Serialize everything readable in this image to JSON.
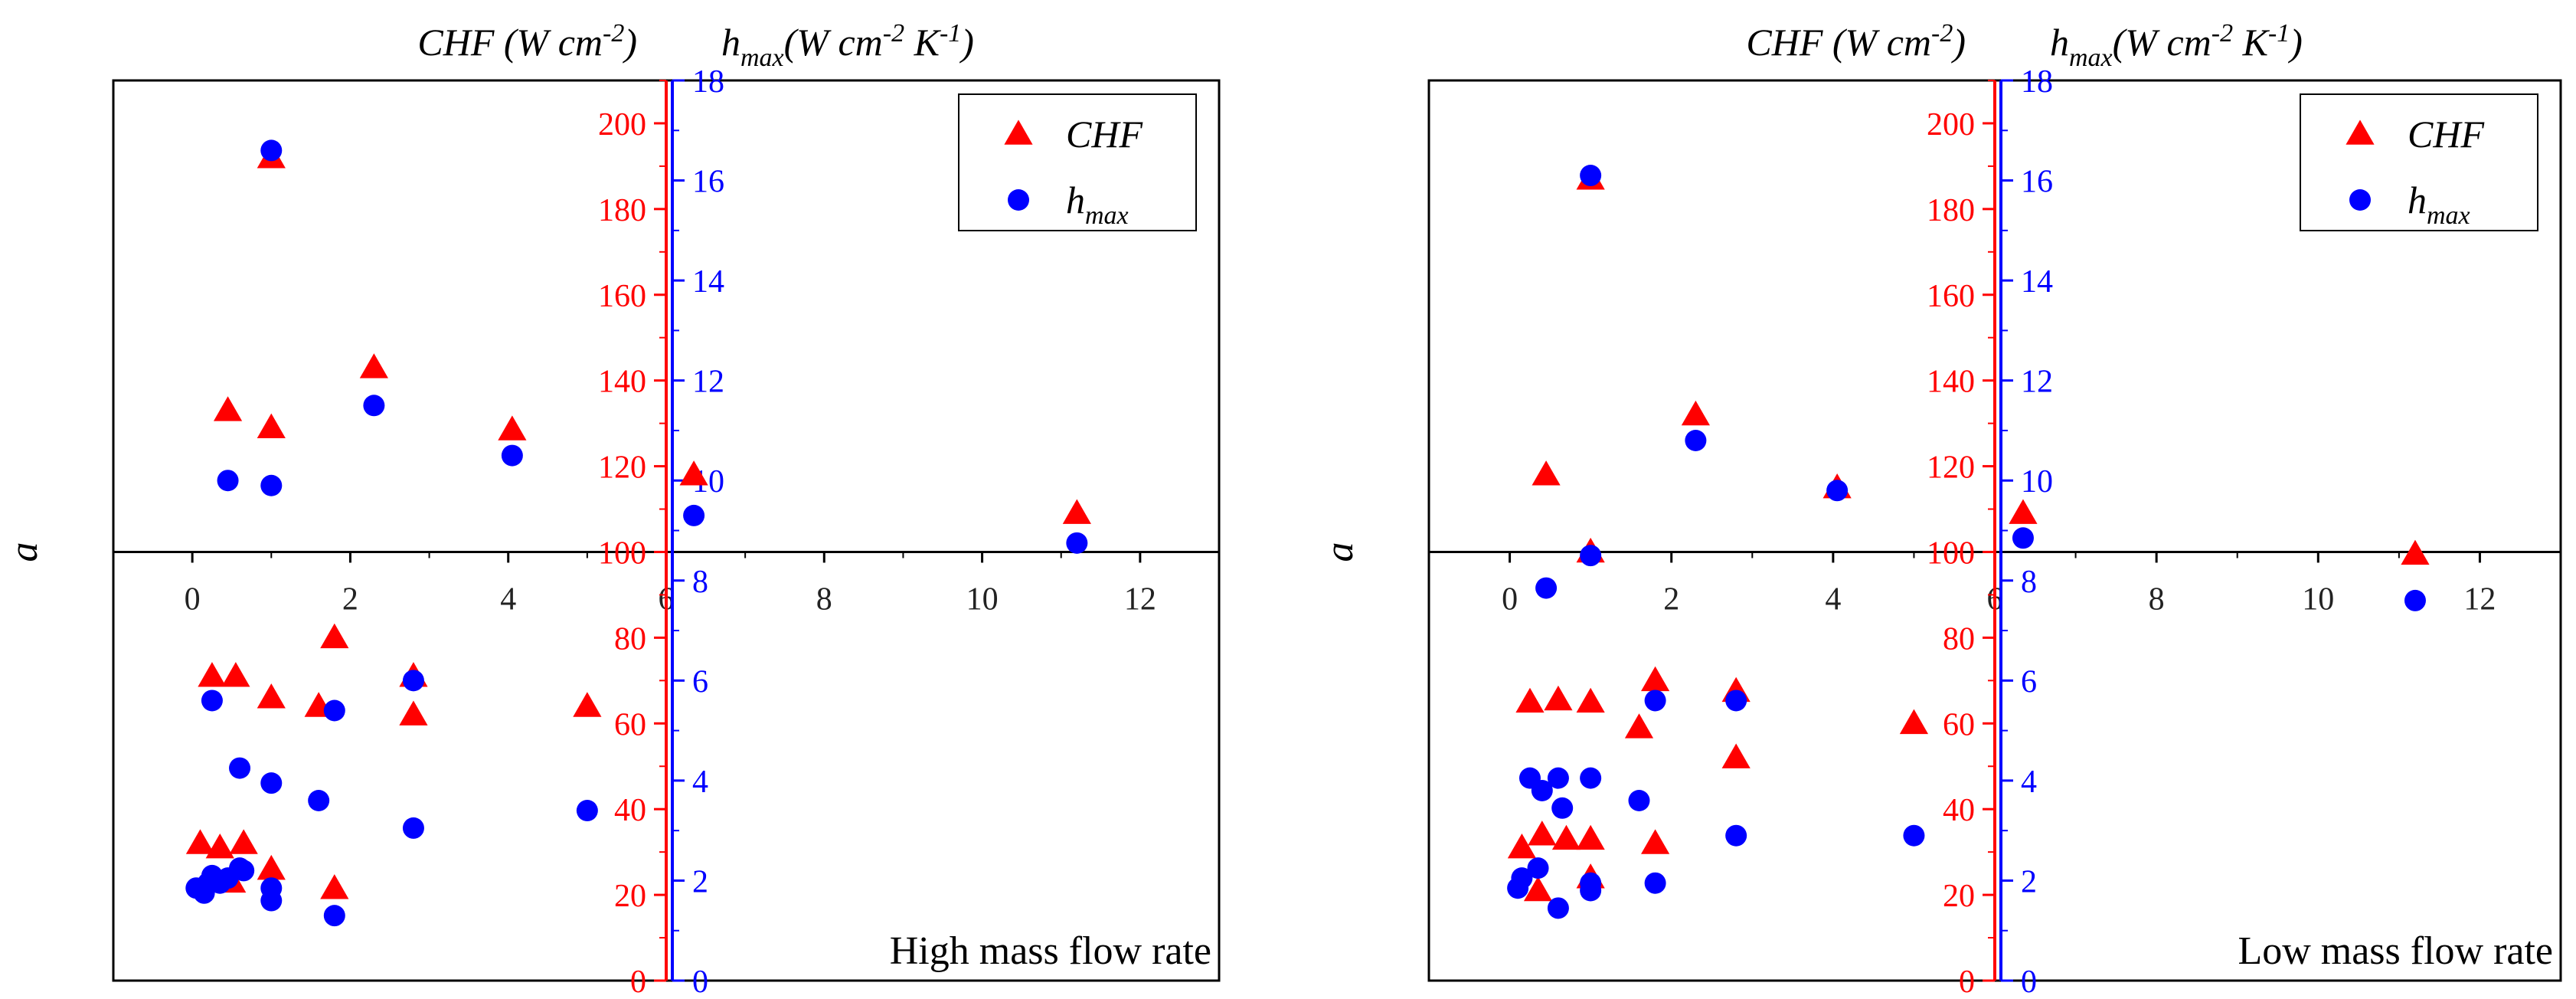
{
  "chart_data": [
    {
      "type": "scatter",
      "annotation": "High mass flow rate",
      "y_side_label": "a",
      "left_axis_title": {
        "base": "CHF (W cm",
        "sup": "-2",
        "tail": ")"
      },
      "right_axis_title": {
        "h": "h",
        "sub": "max",
        "mid": "(W cm",
        "sup1": "-2",
        "k": " K",
        "sup2": "-1",
        "tail": ")"
      },
      "xlim": [
        -1,
        13
      ],
      "x_ticks": [
        0,
        2,
        4,
        6,
        8,
        10,
        12
      ],
      "ylim_left": [
        0,
        210
      ],
      "y_ticks_left": [
        0,
        20,
        40,
        60,
        80,
        100,
        120,
        140,
        160,
        180,
        200
      ],
      "ylim_right": [
        0,
        18
      ],
      "y_ticks_right": [
        0,
        2,
        4,
        6,
        8,
        10,
        12,
        14,
        16,
        18
      ],
      "legend": {
        "position": "top-right",
        "entries": [
          {
            "name": "CHF",
            "marker": "triangle",
            "color": "#ff0000"
          },
          {
            "name": "max",
            "prefix": "h",
            "marker": "circle",
            "color": "#0000ff"
          }
        ]
      },
      "series": [
        {
          "name": "CHF",
          "axis": "left",
          "marker": "triangle",
          "color": "#ff0000",
          "points": [
            [
              0.45,
              133
            ],
            [
              1,
              192
            ],
            [
              1,
              129
            ],
            [
              2.3,
              143
            ],
            [
              4.05,
              128.5
            ],
            [
              6.35,
              118
            ],
            [
              11.2,
              109
            ],
            [
              0.1,
              32
            ],
            [
              0.25,
              71
            ],
            [
              0.35,
              31
            ],
            [
              0.5,
              23
            ],
            [
              0.55,
              71
            ],
            [
              0.65,
              32
            ],
            [
              1,
              66
            ],
            [
              1,
              26
            ],
            [
              1.6,
              64
            ],
            [
              1.8,
              80
            ],
            [
              1.8,
              21.5
            ],
            [
              2.8,
              71
            ],
            [
              2.8,
              62
            ],
            [
              5,
              64
            ]
          ]
        },
        {
          "name": "h_max",
          "axis": "right",
          "marker": "circle",
          "color": "#0000ff",
          "points": [
            [
              0.45,
              10
            ],
            [
              1,
              16.6
            ],
            [
              1,
              9.9
            ],
            [
              2.3,
              11.5
            ],
            [
              4.05,
              10.5
            ],
            [
              6.35,
              9.3
            ],
            [
              11.2,
              8.75
            ],
            [
              0.05,
              1.85
            ],
            [
              0.15,
              1.75
            ],
            [
              0.2,
              1.95
            ],
            [
              0.25,
              2.1
            ],
            [
              0.25,
              5.6
            ],
            [
              0.35,
              1.95
            ],
            [
              0.45,
              2.05
            ],
            [
              0.6,
              4.25
            ],
            [
              0.6,
              2.25
            ],
            [
              0.65,
              2.2
            ],
            [
              1,
              3.95
            ],
            [
              1,
              1.85
            ],
            [
              1,
              1.6
            ],
            [
              1.6,
              3.6
            ],
            [
              1.8,
              5.4
            ],
            [
              1.8,
              1.3
            ],
            [
              2.8,
              6
            ],
            [
              2.8,
              3.05
            ],
            [
              5,
              3.4
            ]
          ]
        }
      ]
    },
    {
      "type": "scatter",
      "annotation": "Low mass flow rate",
      "y_side_label": "a",
      "left_axis_title": {
        "base": "CHF (W cm",
        "sup": "-2",
        "tail": ")"
      },
      "right_axis_title": {
        "h": "h",
        "sub": "max",
        "mid": "(W cm",
        "sup1": "-2",
        "k": " K",
        "sup2": "-1",
        "tail": ")"
      },
      "xlim": [
        -1,
        13
      ],
      "x_ticks": [
        0,
        2,
        4,
        6,
        8,
        10,
        12
      ],
      "ylim_left": [
        0,
        210
      ],
      "y_ticks_left": [
        0,
        20,
        40,
        60,
        80,
        100,
        120,
        140,
        160,
        180,
        200
      ],
      "ylim_right": [
        0,
        18
      ],
      "y_ticks_right": [
        0,
        2,
        4,
        6,
        8,
        10,
        12,
        14,
        16,
        18
      ],
      "legend": {
        "position": "top-right",
        "entries": [
          {
            "name": "CHF",
            "marker": "triangle",
            "color": "#ff0000"
          },
          {
            "name": "max",
            "prefix": "h",
            "marker": "circle",
            "color": "#0000ff"
          }
        ]
      },
      "series": [
        {
          "name": "CHF",
          "axis": "left",
          "marker": "triangle",
          "color": "#ff0000",
          "points": [
            [
              0.45,
              118
            ],
            [
              1,
              187
            ],
            [
              1,
              100
            ],
            [
              2.3,
              132
            ],
            [
              4.05,
              115
            ],
            [
              6.35,
              109
            ],
            [
              11.2,
              99.5
            ],
            [
              0.15,
              31
            ],
            [
              0.25,
              65
            ],
            [
              0.35,
              21
            ],
            [
              0.4,
              34
            ],
            [
              0.6,
              65.5
            ],
            [
              0.7,
              33
            ],
            [
              1,
              65
            ],
            [
              1,
              33
            ],
            [
              1,
              24
            ],
            [
              1.6,
              59
            ],
            [
              1.8,
              70
            ],
            [
              1.8,
              32
            ],
            [
              2.8,
              67.5
            ],
            [
              2.8,
              52
            ],
            [
              5,
              60
            ]
          ]
        },
        {
          "name": "h_max",
          "axis": "right",
          "marker": "circle",
          "color": "#0000ff",
          "points": [
            [
              0.45,
              7.85
            ],
            [
              1,
              16.1
            ],
            [
              1,
              8.5
            ],
            [
              2.3,
              10.8
            ],
            [
              4.05,
              9.8
            ],
            [
              6.35,
              8.85
            ],
            [
              11.2,
              7.6
            ],
            [
              0.1,
              1.85
            ],
            [
              0.15,
              2.05
            ],
            [
              0.25,
              4.05
            ],
            [
              0.35,
              2.25
            ],
            [
              0.4,
              3.8
            ],
            [
              0.6,
              4.05
            ],
            [
              0.6,
              1.45
            ],
            [
              0.65,
              3.45
            ],
            [
              1,
              4.05
            ],
            [
              1,
              1.8
            ],
            [
              1,
              1.95
            ],
            [
              1.6,
              3.6
            ],
            [
              1.8,
              5.6
            ],
            [
              1.8,
              1.95
            ],
            [
              2.8,
              5.6
            ],
            [
              2.8,
              2.9
            ],
            [
              5,
              2.9
            ]
          ]
        }
      ]
    }
  ]
}
